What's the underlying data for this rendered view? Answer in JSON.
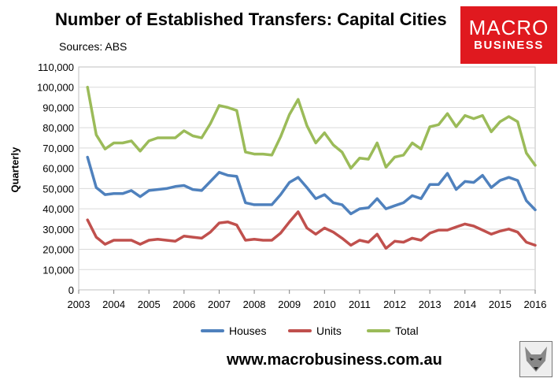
{
  "title": "Number of Established Transfers: Capital Cities",
  "source": "Sources: ABS",
  "logo": {
    "line1": "MACRO",
    "line2": "BUSINESS"
  },
  "url": "www.macrobusiness.com.au",
  "colors": {
    "houses": "#4f81bd",
    "units": "#c0504d",
    "total": "#9bbb59",
    "plot_bg": "#ffffff",
    "grid": "#d9d9d9",
    "logo": "#e0191f"
  },
  "chart_data": {
    "type": "line",
    "title": "Number of Established Transfers: Capital Cities",
    "xlabel": "",
    "ylabel": "Quarterly",
    "xlim": [
      2003,
      2016
    ],
    "ylim": [
      0,
      110000
    ],
    "yticks": [
      "0",
      "10,000",
      "20,000",
      "30,000",
      "40,000",
      "50,000",
      "60,000",
      "70,000",
      "80,000",
      "90,000",
      "100,000",
      "110,000"
    ],
    "xticks": [
      "2003",
      "2004",
      "2005",
      "2006",
      "2007",
      "2008",
      "2009",
      "2010",
      "2011",
      "2012",
      "2013",
      "2014",
      "2015",
      "2016"
    ],
    "grid": true,
    "legend_position": "bottom",
    "x": [
      2003.25,
      2003.5,
      2003.75,
      2004.0,
      2004.25,
      2004.5,
      2004.75,
      2005.0,
      2005.25,
      2005.5,
      2005.75,
      2006.0,
      2006.25,
      2006.5,
      2006.75,
      2007.0,
      2007.25,
      2007.5,
      2007.75,
      2008.0,
      2008.25,
      2008.5,
      2008.75,
      2009.0,
      2009.25,
      2009.5,
      2009.75,
      2010.0,
      2010.25,
      2010.5,
      2010.75,
      2011.0,
      2011.25,
      2011.5,
      2011.75,
      2012.0,
      2012.25,
      2012.5,
      2012.75,
      2013.0,
      2013.25,
      2013.5,
      2013.75,
      2014.0,
      2014.25,
      2014.5,
      2014.75,
      2015.0,
      2015.25,
      2015.5,
      2015.75,
      2016.0
    ],
    "series": [
      {
        "name": "Houses",
        "color": "#4f81bd",
        "values": [
          65500,
          50500,
          47000,
          47500,
          47500,
          49000,
          46000,
          49000,
          49500,
          50000,
          51000,
          51500,
          49500,
          49000,
          53500,
          58000,
          56500,
          56000,
          43000,
          42000,
          42000,
          42000,
          47000,
          53000,
          55500,
          50500,
          45000,
          47000,
          43000,
          42000,
          37500,
          40000,
          40500,
          45000,
          40000,
          41500,
          43000,
          46500,
          45000,
          52000,
          52000,
          57500,
          49500,
          53500,
          53000,
          56500,
          50500,
          54000,
          55500,
          54000,
          44000,
          39500
        ]
      },
      {
        "name": "Units",
        "color": "#c0504d",
        "values": [
          34500,
          26000,
          22500,
          24500,
          24500,
          24500,
          22500,
          24500,
          25000,
          24500,
          24000,
          26500,
          26000,
          25500,
          28500,
          33000,
          33500,
          32000,
          24500,
          25000,
          24500,
          24500,
          28000,
          33500,
          38500,
          30500,
          27500,
          30500,
          28500,
          25500,
          22000,
          24500,
          23500,
          27500,
          20500,
          24000,
          23500,
          25500,
          24500,
          28000,
          29500,
          29500,
          31000,
          32500,
          31500,
          29500,
          27500,
          29000,
          30000,
          28500,
          23500,
          22000
        ]
      },
      {
        "name": "Total",
        "color": "#9bbb59",
        "values": [
          100000,
          76500,
          69500,
          72500,
          72500,
          73500,
          68500,
          73500,
          75000,
          75000,
          75000,
          78500,
          76000,
          75000,
          82000,
          91000,
          90000,
          88500,
          68000,
          67000,
          67000,
          66500,
          75500,
          86500,
          94000,
          81000,
          72500,
          77500,
          71500,
          68000,
          60000,
          65000,
          64500,
          72500,
          60500,
          65500,
          66500,
          72500,
          69500,
          80500,
          81500,
          87000,
          80500,
          86000,
          84500,
          86000,
          78000,
          83000,
          85500,
          83000,
          67500,
          61500
        ]
      }
    ]
  },
  "legend": [
    {
      "label": "Houses",
      "color": "#4f81bd"
    },
    {
      "label": "Units",
      "color": "#c0504d"
    },
    {
      "label": "Total",
      "color": "#9bbb59"
    }
  ]
}
